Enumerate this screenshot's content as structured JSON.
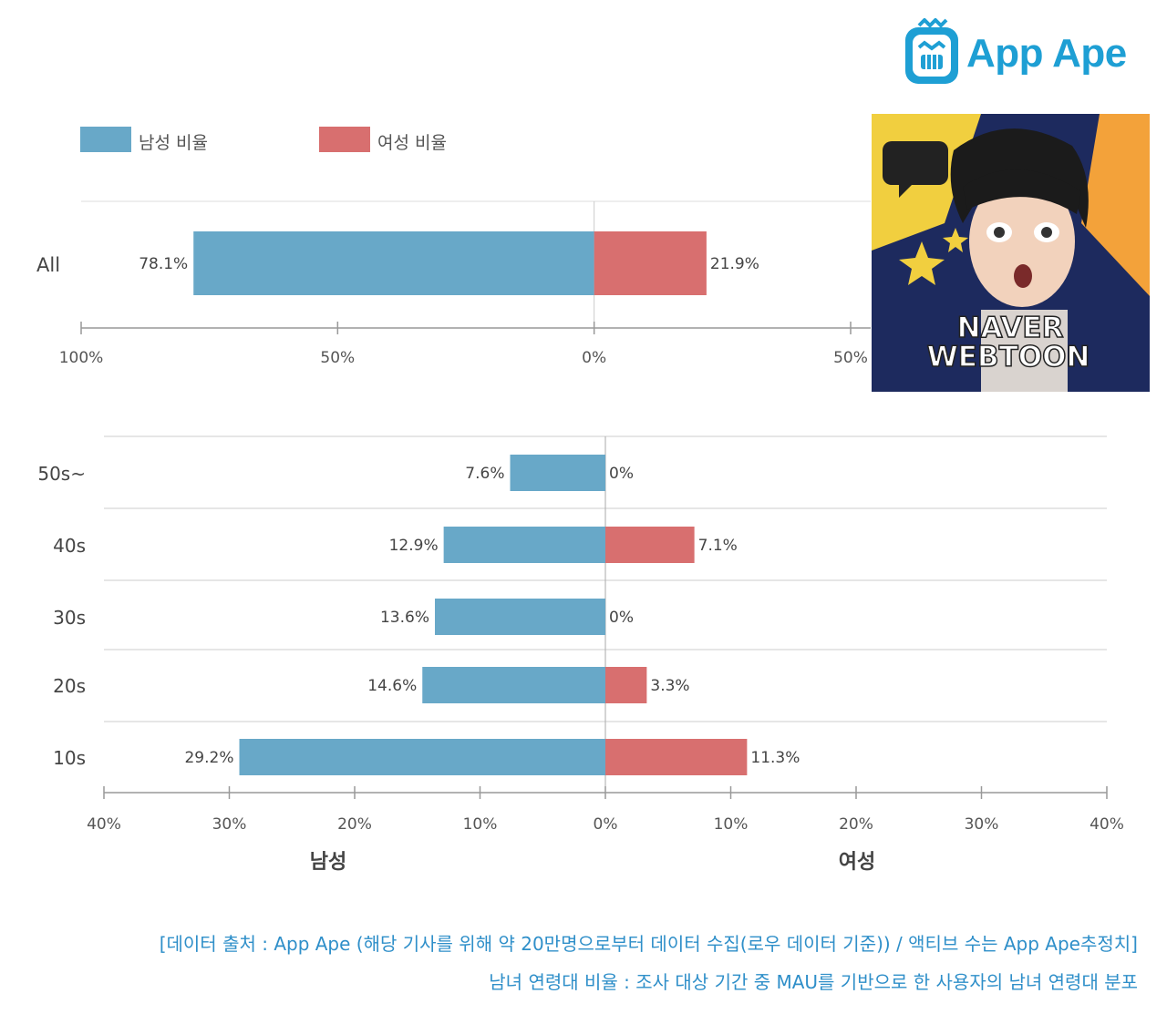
{
  "brand": {
    "name": "App Ape",
    "color": "#1e9fd4"
  },
  "legend": {
    "male_label": "남성 비율",
    "female_label": "여성 비율",
    "male_color": "#68a8c8",
    "female_color": "#d86f6f"
  },
  "thumbnail": {
    "line1": "NAVER",
    "line2": "WEBTOON"
  },
  "chart_data": [
    {
      "type": "bar",
      "orientation": "horizontal-diverging",
      "categories": [
        "All"
      ],
      "series": [
        {
          "name": "남성 비율",
          "values": [
            78.1
          ],
          "labels": [
            "78.1%"
          ]
        },
        {
          "name": "여성 비율",
          "values": [
            21.9
          ],
          "labels": [
            "21.9%"
          ]
        }
      ],
      "xlim": [
        -100,
        50
      ],
      "ticks": [
        -100,
        -50,
        0,
        50
      ],
      "tick_labels": [
        "100%",
        "50%",
        "0%",
        "50%"
      ],
      "grid": false,
      "legend": "top-left"
    },
    {
      "type": "bar",
      "orientation": "horizontal-diverging",
      "categories": [
        "50s~",
        "40s",
        "30s",
        "20s",
        "10s"
      ],
      "series": [
        {
          "name": "남성",
          "values": [
            7.6,
            12.9,
            13.6,
            14.6,
            29.2
          ],
          "labels": [
            "7.6%",
            "12.9%",
            "13.6%",
            "14.6%",
            "29.2%"
          ]
        },
        {
          "name": "여성",
          "values": [
            0,
            7.1,
            0,
            3.3,
            11.3
          ],
          "labels": [
            "0%",
            "7.1%",
            "0%",
            "3.3%",
            "11.3%"
          ]
        }
      ],
      "xlim": [
        -40,
        40
      ],
      "ticks": [
        -40,
        -30,
        -20,
        -10,
        0,
        10,
        20,
        30,
        40
      ],
      "tick_labels": [
        "40%",
        "30%",
        "20%",
        "10%",
        "0%",
        "10%",
        "20%",
        "30%",
        "40%"
      ],
      "xlabel_left": "남성",
      "xlabel_right": "여성",
      "grid": true
    }
  ],
  "footer": {
    "line1": "[데이터 출처 : App Ape (해당 기사를 위해 약 20만명으로부터 데이터 수집(로우 데이터 기준)) / 액티브 수는 App Ape추정치]",
    "line2": "남녀 연령대 비율 : 조사 대상 기간 중 MAU를 기반으로 한 사용자의 남녀 연령대 분포"
  }
}
